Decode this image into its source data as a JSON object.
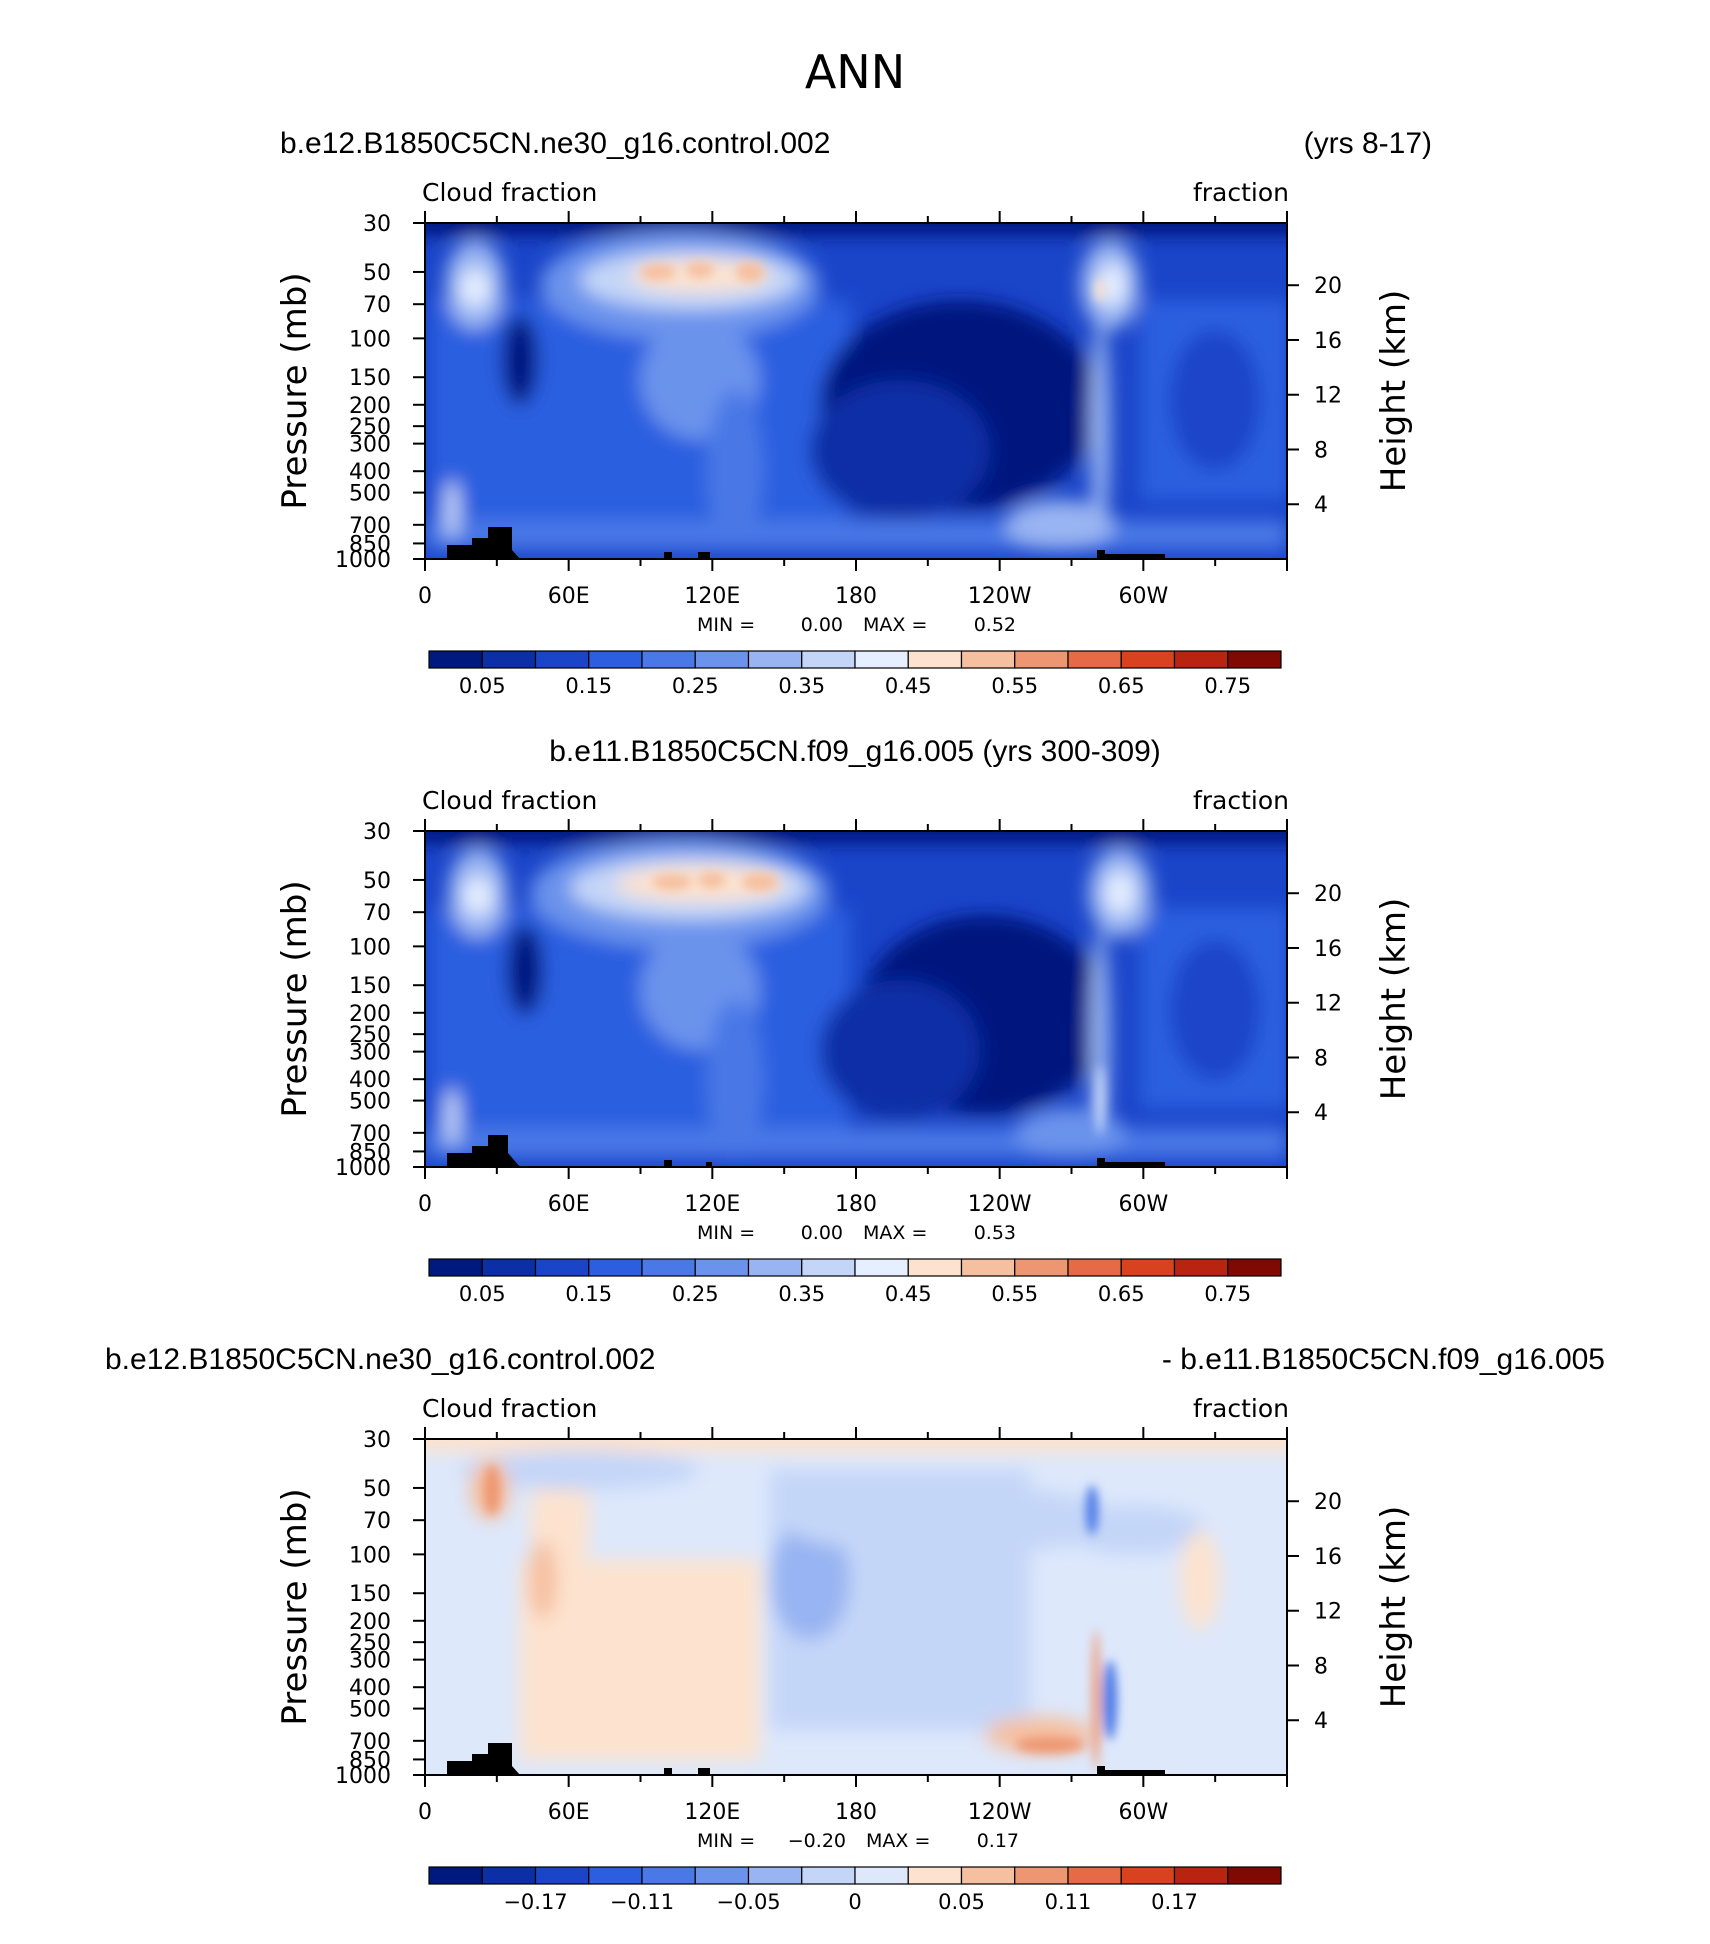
{
  "main_title": "ANN",
  "panels": [
    {
      "header_left": "b.e12.B1850C5CN.ne30_g16.control.002",
      "header_right": "(yrs 8-17)",
      "header_center": "",
      "stats": {
        "min_label": "MIN =",
        "min_value": "0.00",
        "max_label": "MAX =",
        "max_value": "0.52"
      }
    },
    {
      "header_left": "",
      "header_right": "",
      "header_center": "b.e11.B1850C5CN.f09_g16.005 (yrs 300-309)",
      "stats": {
        "min_label": "MIN =",
        "min_value": "0.00",
        "max_label": "MAX =",
        "max_value": "0.53"
      }
    },
    {
      "header_left": "b.e12.B1850C5CN.ne30_g16.control.002",
      "header_right": "- b.e11.B1850C5CN.f09_g16.005",
      "header_center": "",
      "stats": {
        "min_label": "MIN =",
        "min_value": "−0.20",
        "max_label": "MAX =",
        "max_value": "0.17"
      }
    }
  ],
  "chart_data": [
    {
      "type": "heatmap",
      "title": "Cloud fraction",
      "units_label": "fraction",
      "ylabel": "Pressure (mb)",
      "ylabel_right": "Height (km)",
      "x_ticks": [
        "0",
        "60E",
        "120E",
        "180",
        "120W",
        "60W"
      ],
      "x_tick_values": [
        0,
        60,
        120,
        180,
        240,
        300
      ],
      "xlim": [
        0,
        360
      ],
      "y_ticks": [
        "30",
        "50",
        "70",
        "100",
        "150",
        "200",
        "250",
        "300",
        "400",
        "500",
        "700",
        "850",
        "1000"
      ],
      "y_tick_values": [
        30,
        50,
        70,
        100,
        150,
        200,
        250,
        300,
        400,
        500,
        700,
        850,
        1000
      ],
      "ylim": [
        1000,
        30
      ],
      "y_scale": "log-pressure",
      "y_right_ticks": [
        "20",
        "16",
        "12",
        "8",
        "4"
      ],
      "y_right_values": [
        20,
        16,
        12,
        8,
        4
      ],
      "min": 0.0,
      "max": 0.52,
      "colorbar": {
        "levels": [
          0.05,
          0.1,
          0.15,
          0.2,
          0.25,
          0.3,
          0.35,
          0.4,
          0.45,
          0.5,
          0.55,
          0.6,
          0.65,
          0.7,
          0.75
        ],
        "labels": [
          "0.05",
          "0.15",
          "0.25",
          "0.35",
          "0.45",
          "0.55",
          "0.65",
          "0.75"
        ],
        "colors": [
          "#00197f",
          "#0b2fa6",
          "#1a45c9",
          "#2c5ee0",
          "#4a78e6",
          "#6b93ec",
          "#98b4f2",
          "#c4d6f8",
          "#e6efff",
          "#fde3cf",
          "#f6bf9f",
          "#ee9671",
          "#e56a45",
          "#d8421f",
          "#b92410",
          "#7f0a04"
        ]
      }
    },
    {
      "type": "heatmap",
      "title": "Cloud fraction",
      "units_label": "fraction",
      "ylabel": "Pressure (mb)",
      "ylabel_right": "Height (km)",
      "x_ticks": [
        "0",
        "60E",
        "120E",
        "180",
        "120W",
        "60W"
      ],
      "x_tick_values": [
        0,
        60,
        120,
        180,
        240,
        300
      ],
      "xlim": [
        0,
        360
      ],
      "y_ticks": [
        "30",
        "50",
        "70",
        "100",
        "150",
        "200",
        "250",
        "300",
        "400",
        "500",
        "700",
        "850",
        "1000"
      ],
      "y_tick_values": [
        30,
        50,
        70,
        100,
        150,
        200,
        250,
        300,
        400,
        500,
        700,
        850,
        1000
      ],
      "ylim": [
        1000,
        30
      ],
      "y_scale": "log-pressure",
      "y_right_ticks": [
        "20",
        "16",
        "12",
        "8",
        "4"
      ],
      "y_right_values": [
        20,
        16,
        12,
        8,
        4
      ],
      "min": 0.0,
      "max": 0.53,
      "colorbar": {
        "levels": [
          0.05,
          0.1,
          0.15,
          0.2,
          0.25,
          0.3,
          0.35,
          0.4,
          0.45,
          0.5,
          0.55,
          0.6,
          0.65,
          0.7,
          0.75
        ],
        "labels": [
          "0.05",
          "0.15",
          "0.25",
          "0.35",
          "0.45",
          "0.55",
          "0.65",
          "0.75"
        ],
        "colors": [
          "#00197f",
          "#0b2fa6",
          "#1a45c9",
          "#2c5ee0",
          "#4a78e6",
          "#6b93ec",
          "#98b4f2",
          "#c4d6f8",
          "#e6efff",
          "#fde3cf",
          "#f6bf9f",
          "#ee9671",
          "#e56a45",
          "#d8421f",
          "#b92410",
          "#7f0a04"
        ]
      }
    },
    {
      "type": "heatmap",
      "title": "Cloud fraction",
      "units_label": "fraction",
      "ylabel": "Pressure (mb)",
      "ylabel_right": "Height (km)",
      "x_ticks": [
        "0",
        "60E",
        "120E",
        "180",
        "120W",
        "60W"
      ],
      "x_tick_values": [
        0,
        60,
        120,
        180,
        240,
        300
      ],
      "xlim": [
        0,
        360
      ],
      "y_ticks": [
        "30",
        "50",
        "70",
        "100",
        "150",
        "200",
        "250",
        "300",
        "400",
        "500",
        "700",
        "850",
        "1000"
      ],
      "y_tick_values": [
        30,
        50,
        70,
        100,
        150,
        200,
        250,
        300,
        400,
        500,
        700,
        850,
        1000
      ],
      "ylim": [
        1000,
        30
      ],
      "y_scale": "log-pressure",
      "y_right_ticks": [
        "20",
        "16",
        "12",
        "8",
        "4"
      ],
      "y_right_values": [
        20,
        16,
        12,
        8,
        4
      ],
      "min": -0.2,
      "max": 0.17,
      "colorbar": {
        "levels": [
          -0.2,
          -0.17,
          -0.14,
          -0.11,
          -0.08,
          -0.05,
          -0.02,
          0,
          0.02,
          0.05,
          0.08,
          0.11,
          0.14,
          0.17,
          0.2
        ],
        "labels": [
          "−0.17",
          "−0.11",
          "−0.05",
          "0",
          "0.05",
          "0.11",
          "0.17"
        ],
        "label_levels": [
          -0.17,
          -0.11,
          -0.05,
          0,
          0.05,
          0.11,
          0.17
        ],
        "colors": [
          "#00197f",
          "#0b2fa6",
          "#1a45c9",
          "#2c5ee0",
          "#4a78e6",
          "#6b93ec",
          "#98b4f2",
          "#c4d6f8",
          "#dde8fb",
          "#fde3cf",
          "#f6bf9f",
          "#ee9671",
          "#e56a45",
          "#d8421f",
          "#b92410",
          "#7f0a04"
        ]
      }
    }
  ]
}
